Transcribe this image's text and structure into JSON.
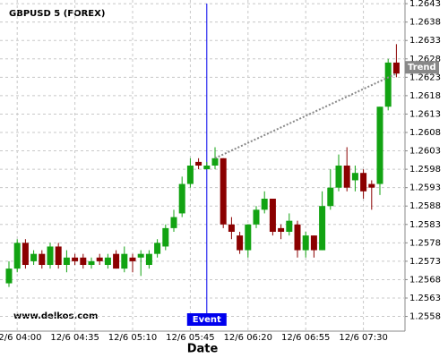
{
  "chart_data": {
    "type": "candlestick",
    "title": "GBPUSD 5 (FOREX)",
    "watermark": "www.delkos.com",
    "x_label": "Date",
    "categories": [
      null,
      "12/6 04:00",
      null,
      null,
      null,
      null,
      null,
      null,
      "12/6 04:35",
      null,
      null,
      null,
      null,
      null,
      null,
      "12/6 05:10",
      null,
      null,
      null,
      null,
      null,
      null,
      "12/6 05:45",
      null,
      null,
      null,
      null,
      null,
      null,
      "12/6 06:20",
      null,
      null,
      null,
      null,
      null,
      null,
      "12/6 06:55",
      null,
      null,
      null,
      null,
      null,
      null,
      "12/6 07:30",
      null,
      null,
      null,
      null
    ],
    "open": [
      1.2567,
      1.2571,
      1.2578,
      1.2573,
      1.2575,
      1.2572,
      1.2577,
      1.2572,
      1.2574,
      1.2574,
      1.2572,
      1.2574,
      1.2572,
      1.2575,
      1.2571,
      1.2574,
      1.2574,
      1.2572,
      1.2575,
      1.2577,
      1.2582,
      1.2586,
      1.2594,
      1.26,
      1.2598,
      1.2599,
      1.2601,
      1.2583,
      1.258,
      1.2576,
      1.2583,
      1.2587,
      1.259,
      1.2582,
      1.2581,
      1.2583,
      1.2576,
      1.258,
      1.2576,
      1.2588,
      1.2593,
      1.2599,
      1.2595,
      1.2597,
      1.2594,
      1.2594,
      1.2615,
      1.2627
    ],
    "high": [
      1.2573,
      1.2579,
      1.2579,
      1.2576,
      1.2576,
      1.2578,
      1.2578,
      1.2576,
      1.2575,
      1.2575,
      1.2574,
      1.2575,
      1.2575,
      1.2576,
      1.2577,
      1.2575,
      1.2576,
      1.2576,
      1.2579,
      1.2583,
      1.2587,
      1.2596,
      1.2601,
      1.2601,
      1.26,
      1.2604,
      1.2601,
      1.2585,
      1.2581,
      1.2583,
      1.2588,
      1.2592,
      1.259,
      1.2583,
      1.2586,
      1.2584,
      1.2581,
      1.258,
      1.2592,
      1.2598,
      1.2602,
      1.2604,
      1.2599,
      1.2598,
      1.2595,
      1.2615,
      1.2628,
      1.2632
    ],
    "low": [
      1.2566,
      1.257,
      1.2571,
      1.2572,
      1.2571,
      1.2571,
      1.2571,
      1.257,
      1.2572,
      1.2571,
      1.2571,
      1.2572,
      1.2571,
      1.2571,
      1.257,
      1.257,
      1.2569,
      1.2571,
      1.2574,
      1.2576,
      1.2581,
      1.2585,
      1.2593,
      1.2598,
      1.2598,
      1.2598,
      1.2582,
      1.2579,
      1.2575,
      1.2574,
      1.2582,
      1.2586,
      1.258,
      1.2579,
      1.258,
      1.2574,
      1.2574,
      1.2574,
      1.2576,
      1.2587,
      1.2592,
      1.2592,
      1.2592,
      1.259,
      1.2587,
      1.2591,
      1.2614,
      1.2623
    ],
    "close": [
      1.2571,
      1.2578,
      1.2572,
      1.2575,
      1.2572,
      1.2577,
      1.2572,
      1.2574,
      1.2573,
      1.2572,
      1.2573,
      1.2573,
      1.2574,
      1.2571,
      1.2575,
      1.2573,
      1.2575,
      1.2575,
      1.2578,
      1.2582,
      1.2585,
      1.2594,
      1.2599,
      1.2599,
      1.2599,
      1.2601,
      1.2583,
      1.2581,
      1.2576,
      1.2583,
      1.2587,
      1.259,
      1.2581,
      1.2581,
      1.2584,
      1.2576,
      1.258,
      1.2576,
      1.2588,
      1.2593,
      1.2599,
      1.2593,
      1.2597,
      1.2592,
      1.2593,
      1.2615,
      1.2627,
      1.2624
    ],
    "up_color": "#12a312",
    "down_color": "#8b0000",
    "ylim": [
      1.2554,
      1.2644
    ],
    "yticks": [
      1.2558,
      1.2563,
      1.2568,
      1.2573,
      1.2578,
      1.2583,
      1.2588,
      1.2593,
      1.2598,
      1.2603,
      1.2608,
      1.2613,
      1.2618,
      1.2623,
      1.2628,
      1.2633,
      1.2638,
      1.2643
    ],
    "grid": true,
    "event": {
      "label": "Event",
      "index": 24,
      "color": "#0000ee"
    },
    "trend": {
      "label": "Trend",
      "start": {
        "index": 25,
        "value": 1.2601
      },
      "end": {
        "index": 47,
        "value": 1.2624
      },
      "color": "#888888"
    }
  }
}
